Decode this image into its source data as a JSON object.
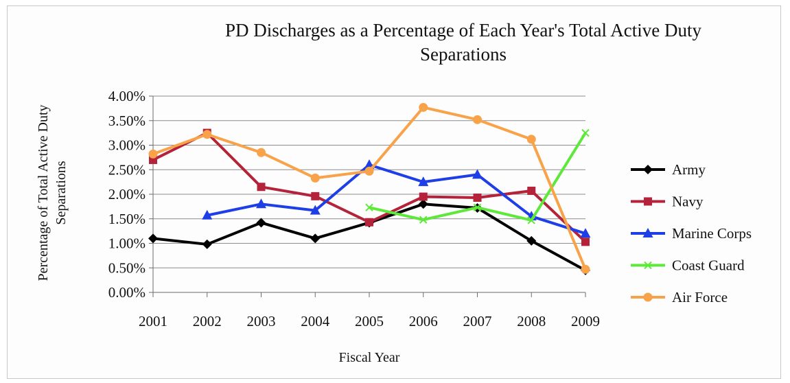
{
  "chart_data": {
    "type": "line",
    "title_lines": [
      "PD Discharges as a Percentage of Each Year's Total Active Duty",
      "Separations"
    ],
    "xlabel": "Fiscal Year",
    "ylabel_lines": [
      "Percentage of Total Active Duty",
      "Separations"
    ],
    "categories": [
      "2001",
      "2002",
      "2003",
      "2004",
      "2005",
      "2006",
      "2007",
      "2008",
      "2009"
    ],
    "ylim": [
      0,
      4
    ],
    "yticks": [
      0,
      0.5,
      1,
      1.5,
      2,
      2.5,
      3,
      3.5,
      4
    ],
    "ytick_labels": [
      "0.00%",
      "0.50%",
      "1.00%",
      "1.50%",
      "2.00%",
      "2.50%",
      "3.00%",
      "3.50%",
      "4.00%"
    ],
    "grid": true,
    "legend_position": "right",
    "series": [
      {
        "name": "Army",
        "color": "#000000",
        "marker": "diamond",
        "values": [
          1.1,
          0.98,
          1.42,
          1.1,
          1.42,
          1.8,
          1.72,
          1.05,
          0.45
        ]
      },
      {
        "name": "Navy",
        "color": "#b5233a",
        "marker": "square",
        "values": [
          2.7,
          3.25,
          2.15,
          1.96,
          1.43,
          1.95,
          1.93,
          2.07,
          1.03
        ]
      },
      {
        "name": "Marine Corps",
        "color": "#1f3fe6",
        "marker": "triangle",
        "values": [
          null,
          1.57,
          1.8,
          1.67,
          2.6,
          2.25,
          2.4,
          1.55,
          1.2
        ]
      },
      {
        "name": "Coast Guard",
        "color": "#5ee83a",
        "marker": "x",
        "values": [
          null,
          null,
          null,
          null,
          1.73,
          1.48,
          1.73,
          1.47,
          3.25
        ]
      },
      {
        "name": "Air Force",
        "color": "#f8a24a",
        "marker": "circle",
        "values": [
          2.82,
          3.22,
          2.85,
          2.33,
          2.47,
          3.77,
          3.52,
          3.12,
          0.47
        ]
      }
    ]
  }
}
